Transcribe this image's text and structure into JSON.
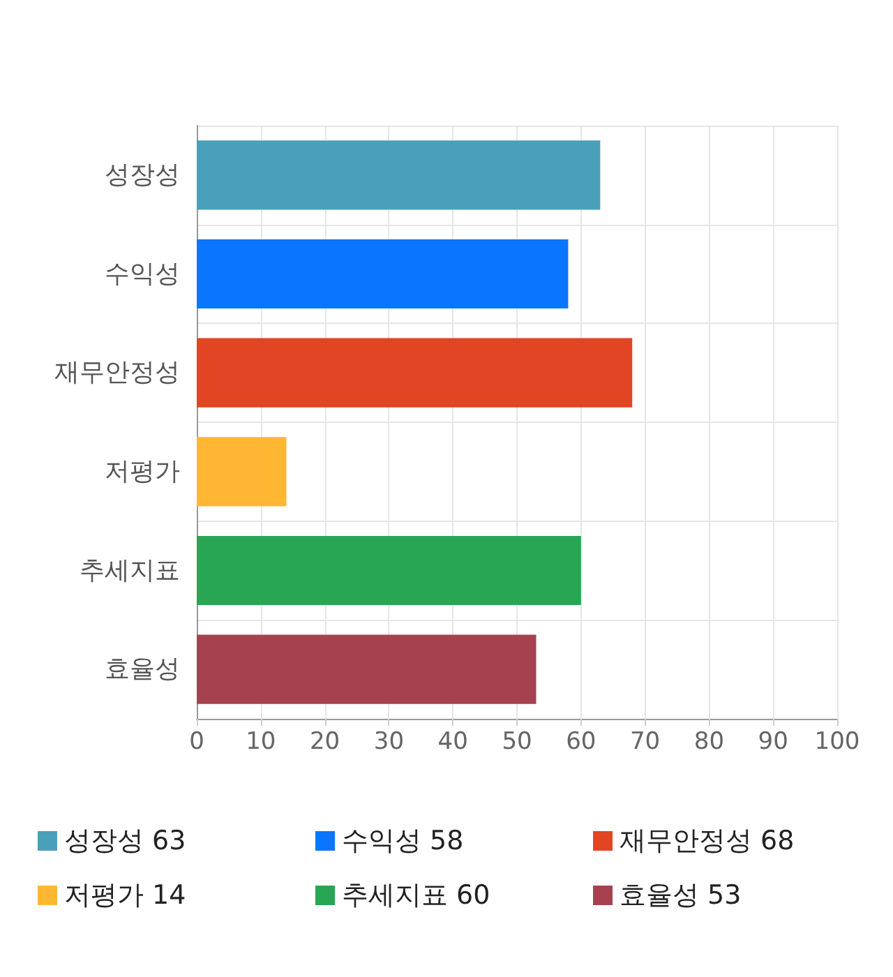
{
  "chart_data": {
    "type": "bar",
    "orientation": "horizontal",
    "stacked": true,
    "categories": [
      "성장성",
      "수익성",
      "재무안정성",
      "저평가",
      "추세지표",
      "효율성"
    ],
    "series": [
      {
        "name": "성장성 63",
        "color": "#4aa0b9",
        "values": [
          63,
          null,
          null,
          null,
          null,
          null
        ]
      },
      {
        "name": "수익성 58",
        "color": "#0a76ff",
        "values": [
          null,
          58,
          null,
          null,
          null,
          null
        ]
      },
      {
        "name": "재무안정성 68",
        "color": "#e24523",
        "values": [
          null,
          null,
          68,
          null,
          null,
          null
        ]
      },
      {
        "name": "저평가 14",
        "color": "#ffb733",
        "values": [
          null,
          null,
          null,
          14,
          null,
          null
        ]
      },
      {
        "name": "추세지표 60",
        "color": "#29a653",
        "values": [
          null,
          null,
          null,
          null,
          60,
          null
        ]
      },
      {
        "name": "효율성 53",
        "color": "#a6424f",
        "values": [
          null,
          null,
          null,
          null,
          null,
          53
        ]
      }
    ],
    "xlim": [
      0,
      100
    ],
    "xticks": [
      0,
      10,
      20,
      30,
      40,
      50,
      60,
      70,
      80,
      90,
      100
    ],
    "grid": true,
    "legend": "bottom"
  }
}
